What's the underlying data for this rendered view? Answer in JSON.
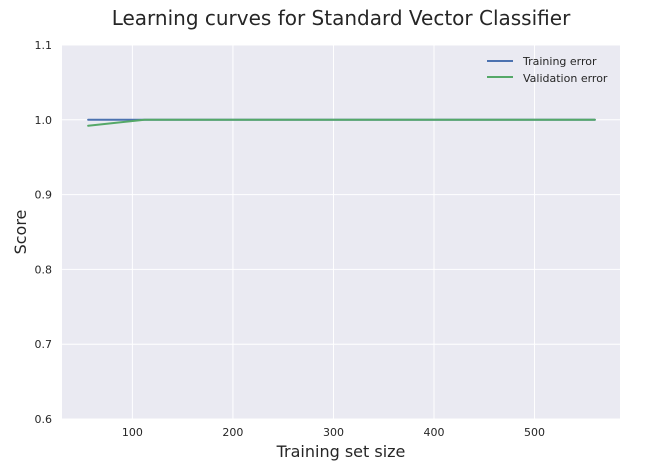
{
  "colors": {
    "plot_background": "#EAEAF2",
    "grid": "#FFFFFF",
    "training": "#4C72B0",
    "validation": "#55A868"
  },
  "chart_data": {
    "type": "line",
    "title": "Learning curves for Standard Vector Classifier",
    "xlabel": "Training set size",
    "ylabel": "Score",
    "xlim": [
      30,
      585
    ],
    "ylim": [
      0.6,
      1.1
    ],
    "x_ticks": [
      100,
      200,
      300,
      400,
      500
    ],
    "x_tick_labels": [
      "100",
      "200",
      "300",
      "400",
      "500"
    ],
    "y_ticks": [
      0.6,
      0.7,
      0.8,
      0.9,
      1.0,
      1.1
    ],
    "y_tick_labels": [
      "0.6",
      "0.7",
      "0.8",
      "0.9",
      "1.0",
      "1.1"
    ],
    "grid": true,
    "legend_position": "top-right",
    "x": [
      56,
      112,
      168,
      224,
      280,
      336,
      392,
      448,
      504,
      560
    ],
    "series": [
      {
        "name": "Training error",
        "color": "#4C72B0",
        "values": [
          1.0,
          1.0,
          1.0,
          1.0,
          1.0,
          1.0,
          1.0,
          1.0,
          1.0,
          1.0
        ]
      },
      {
        "name": "Validation error",
        "color": "#55A868",
        "values": [
          0.992,
          1.0,
          1.0,
          1.0,
          1.0,
          1.0,
          1.0,
          1.0,
          1.0,
          1.0
        ]
      }
    ]
  }
}
